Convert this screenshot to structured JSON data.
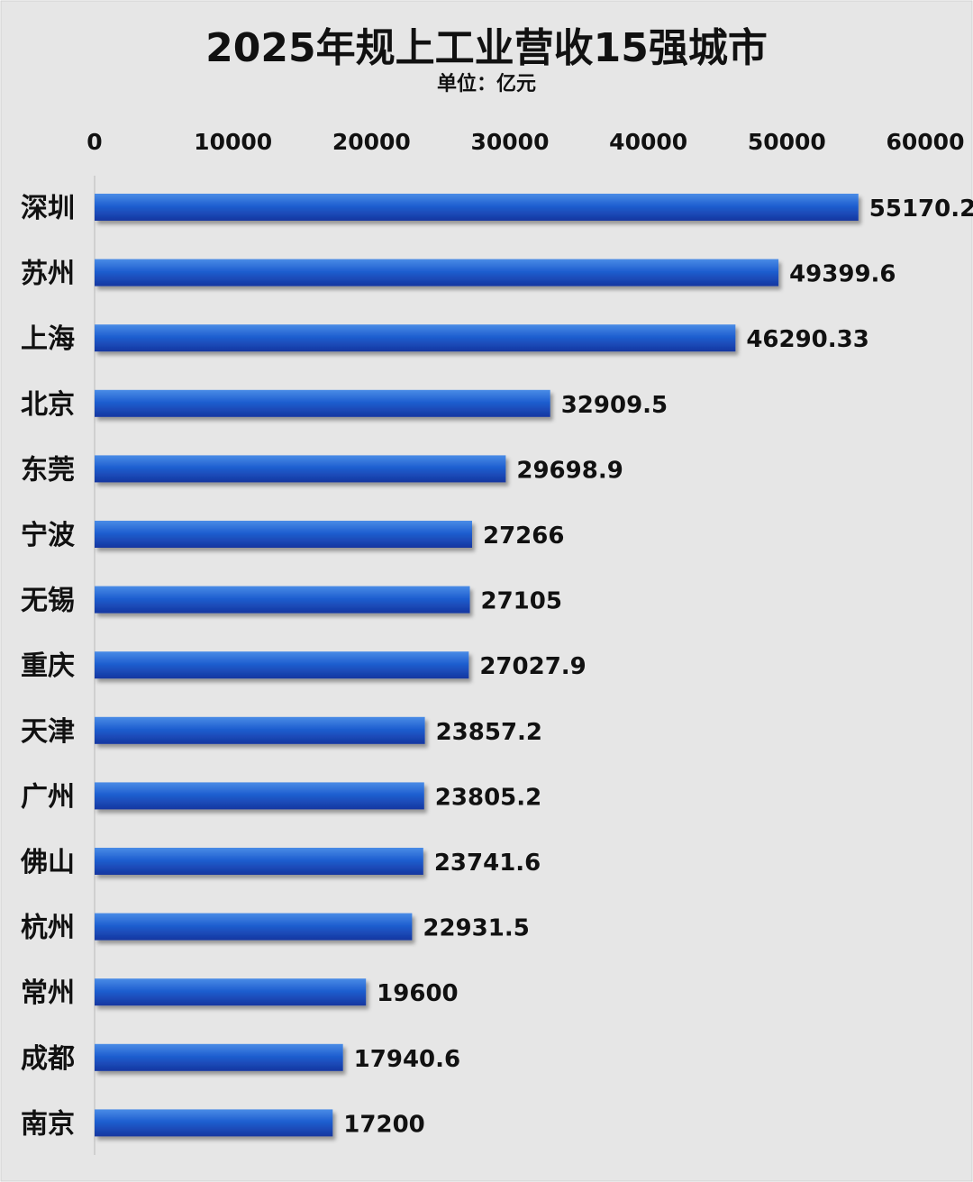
{
  "chart_data": {
    "type": "bar",
    "orientation": "horizontal",
    "title": "2025年规上工业营收15强城市",
    "subtitle": "单位：亿元",
    "categories": [
      "深圳",
      "苏州",
      "上海",
      "北京",
      "东莞",
      "宁波",
      "无锡",
      "重庆",
      "天津",
      "广州",
      "佛山",
      "杭州",
      "常州",
      "成都",
      "南京"
    ],
    "values": [
      55170.2,
      49399.6,
      46290.33,
      32909.5,
      29698.9,
      27266,
      27105,
      27027.9,
      23857.2,
      23805.2,
      23741.6,
      22931.5,
      19600,
      17940.6,
      17200
    ],
    "value_labels": [
      "55170.2",
      "49399.6",
      "46290.33",
      "32909.5",
      "29698.9",
      "27266",
      "27105",
      "27027.9",
      "23857.2",
      "23805.2",
      "23741.6",
      "22931.5",
      "19600",
      "17940.6",
      "17200"
    ],
    "xlim": [
      0,
      60000
    ],
    "x_ticks": [
      0,
      10000,
      20000,
      30000,
      40000,
      50000,
      60000
    ],
    "x_tick_labels": [
      "0",
      "10000",
      "20000",
      "30000",
      "40000",
      "50000",
      "60000"
    ],
    "x_axis_position": "top",
    "grid": false,
    "legend": "none",
    "colors": {
      "background": "#e6e6e6",
      "bar_light": "#4a8ce6",
      "bar_mid": "#1f5fd0",
      "bar_dark": "#1636a0",
      "text": "#111111",
      "axis": "#c8c8c8"
    }
  }
}
